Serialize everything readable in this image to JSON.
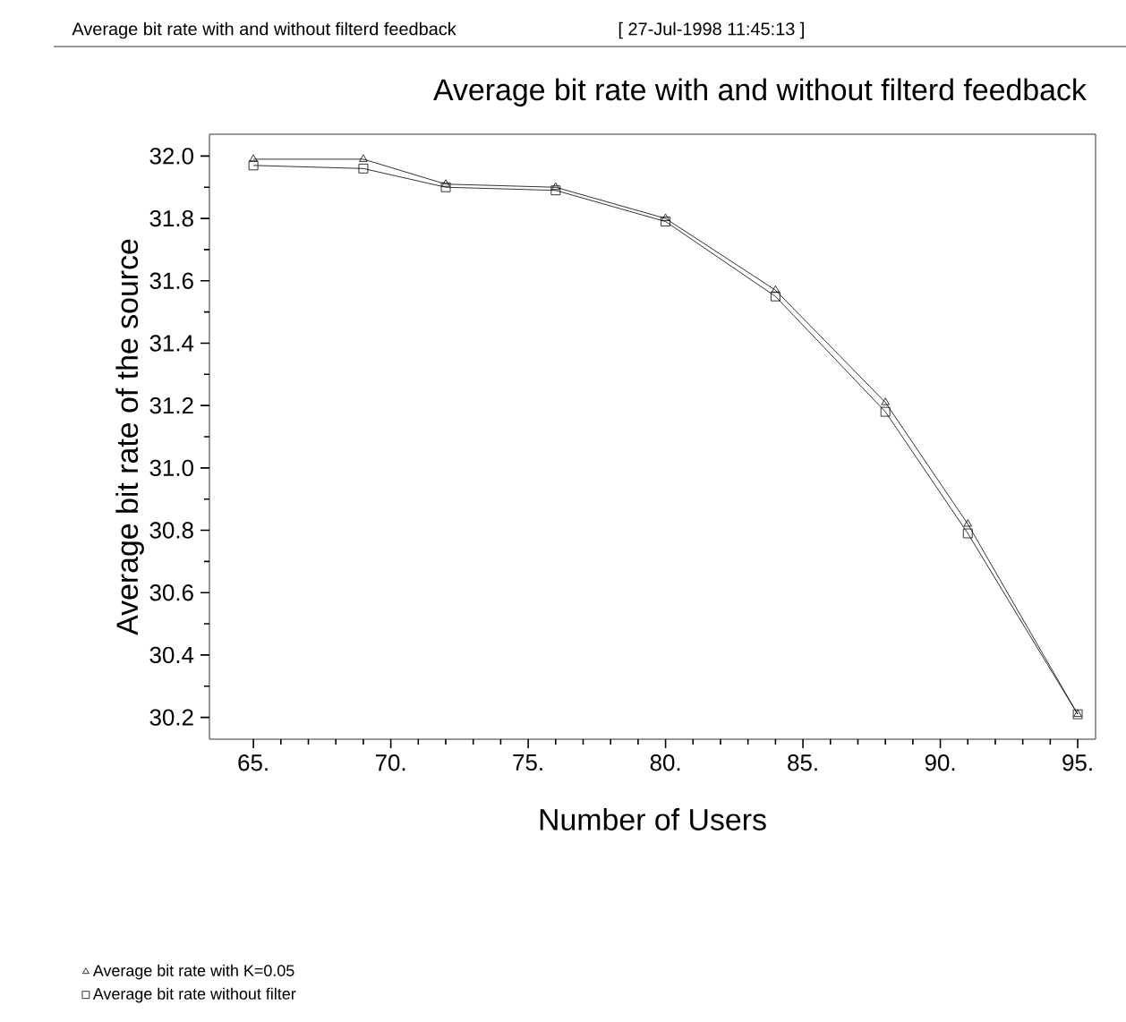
{
  "chart_data": {
    "type": "line",
    "title": "Average bit rate with and without filterd feedback",
    "xlabel": "Number of Users",
    "ylabel": "Average bit rate of the source",
    "annotations": [
      "Average bit rate with and without filterd feedback",
      "[ 27-Jul-1998 11:45:13 ]"
    ],
    "x": [
      65,
      69,
      72,
      76,
      80,
      84,
      88,
      91,
      95
    ],
    "series": [
      {
        "name": "Average bit rate with K=0.05",
        "color": "#000000",
        "marker": "triangle",
        "values": [
          31.99,
          31.99,
          31.91,
          31.9,
          31.8,
          31.57,
          31.21,
          30.82,
          30.21
        ]
      },
      {
        "name": "Average bit rate without filter",
        "color": "#000000",
        "marker": "square",
        "values": [
          31.97,
          31.96,
          31.9,
          31.89,
          31.79,
          31.55,
          31.18,
          30.79,
          30.21
        ]
      }
    ],
    "xlim": [
      63.4,
      95.65
    ],
    "ylim": [
      30.13,
      32.07
    ],
    "xticks": [
      {
        "value": 65,
        "label": "65."
      },
      {
        "value": 70,
        "label": "70."
      },
      {
        "value": 75,
        "label": "75."
      },
      {
        "value": 80,
        "label": "80."
      },
      {
        "value": 85,
        "label": "85."
      },
      {
        "value": 90,
        "label": "90."
      },
      {
        "value": 95,
        "label": "95."
      }
    ],
    "yticks": [
      {
        "value": 30.2,
        "label": "30.2"
      },
      {
        "value": 30.4,
        "label": "30.4"
      },
      {
        "value": 30.6,
        "label": "30.6"
      },
      {
        "value": 30.8,
        "label": "30.8"
      },
      {
        "value": 31.0,
        "label": "31.0"
      },
      {
        "value": 31.2,
        "label": "31.2"
      },
      {
        "value": 31.4,
        "label": "31.4"
      },
      {
        "value": 31.6,
        "label": "31.6"
      },
      {
        "value": 31.8,
        "label": "31.8"
      },
      {
        "value": 32.0,
        "label": "32.0"
      }
    ],
    "grid": false,
    "legend": "bottom left"
  }
}
